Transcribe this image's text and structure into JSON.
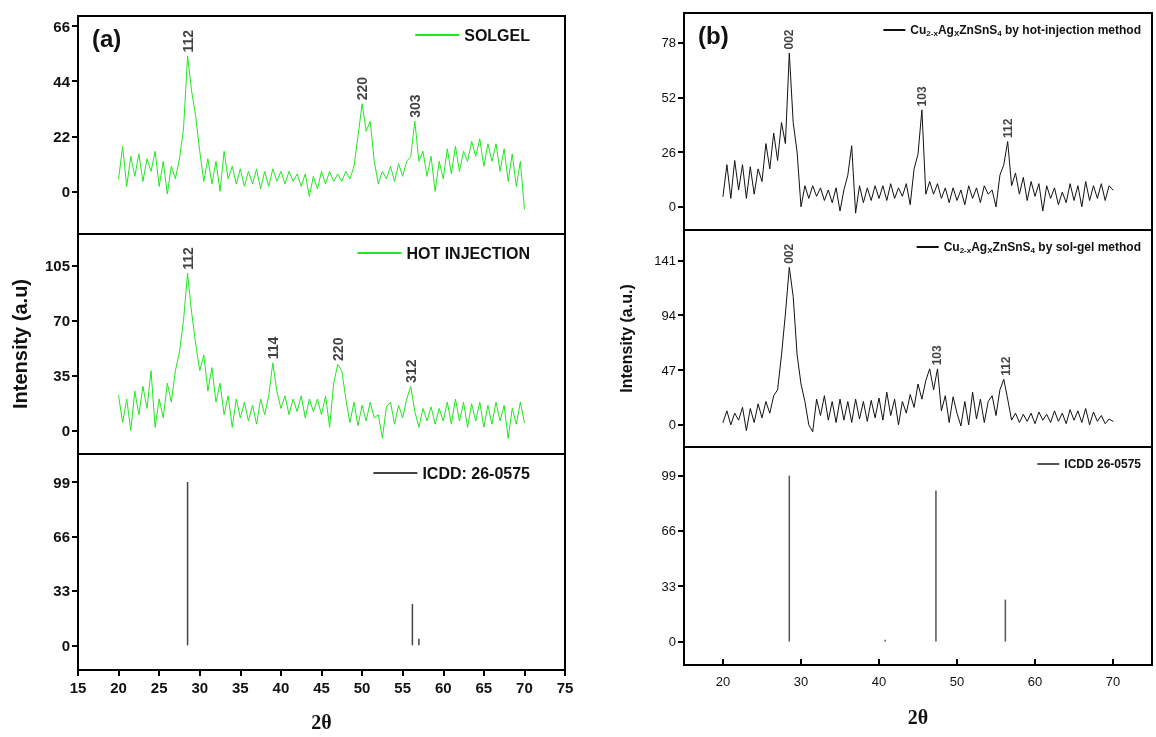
{
  "chart_data": [
    {
      "type": "line",
      "xlim": [
        15,
        75
      ],
      "ylim": [
        -17,
        70
      ],
      "yticks": [
        0,
        22,
        44,
        66
      ],
      "tick_labels": "y",
      "legend": "top right",
      "annotations": [
        "(a)",
        {
          "text": "112",
          "x": 28.5,
          "y": 54
        },
        {
          "text": "220",
          "x": 50,
          "y": 35
        },
        {
          "text": "303",
          "x": 56.5,
          "y": 28
        }
      ],
      "series": [
        {
          "name": "SOLGEL",
          "color": "#22e622",
          "x": [
            20,
            20.5,
            21,
            21.5,
            22,
            22.5,
            23,
            23.5,
            24,
            24.5,
            25,
            25.5,
            26,
            26.5,
            27,
            27.5,
            28,
            28.5,
            29,
            29.5,
            30,
            30.5,
            31,
            31.5,
            32,
            32.5,
            33,
            33.5,
            34,
            34.5,
            35,
            35.5,
            36,
            36.5,
            37,
            37.5,
            38,
            38.5,
            39,
            39.5,
            40,
            40.5,
            41,
            41.5,
            42,
            42.5,
            43,
            43.5,
            44,
            44.5,
            45,
            45.5,
            46,
            46.5,
            47,
            47.5,
            48,
            48.5,
            49,
            49.5,
            50,
            50.5,
            51,
            51.5,
            52,
            52.5,
            53,
            53.5,
            54,
            54.5,
            55,
            55.5,
            56,
            56.5,
            57,
            57.5,
            58,
            58.5,
            59,
            59.5,
            60,
            60.5,
            61,
            61.5,
            62,
            62.5,
            63,
            63.5,
            64,
            64.5,
            65,
            65.5,
            66,
            66.5,
            67,
            67.5,
            68,
            68.5,
            69,
            69.5,
            70
          ],
          "values": [
            5,
            18,
            2,
            14,
            6,
            15,
            4,
            13,
            8,
            16,
            2,
            12,
            -1,
            10,
            5,
            13,
            25,
            54,
            40,
            30,
            16,
            4,
            13,
            3,
            12,
            0,
            16,
            5,
            10,
            3,
            9,
            2,
            8,
            3,
            9,
            1,
            8,
            2,
            9,
            4,
            8,
            3,
            8,
            4,
            7,
            2,
            7,
            -2,
            6,
            1,
            8,
            3,
            8,
            4,
            7,
            4,
            8,
            5,
            10,
            22,
            35,
            24,
            28,
            12,
            3,
            8,
            5,
            10,
            4,
            11,
            6,
            12,
            14,
            28,
            12,
            16,
            6,
            14,
            0,
            12,
            5,
            17,
            7,
            18,
            8,
            16,
            12,
            20,
            14,
            21,
            10,
            19,
            12,
            19,
            8,
            17,
            4,
            15,
            2,
            12,
            -7
          ]
        }
      ]
    },
    {
      "type": "line",
      "xlim": [
        15,
        75
      ],
      "ylim": [
        -15,
        125
      ],
      "yticks": [
        0,
        35,
        70,
        105
      ],
      "tick_labels": "y",
      "legend": "top right",
      "ylabel": "Intensity (a.u)",
      "annotations": [
        {
          "text": "112",
          "x": 28.5,
          "y": 100
        },
        {
          "text": "114",
          "x": 39,
          "y": 43
        },
        {
          "text": "220",
          "x": 47,
          "y": 42
        },
        {
          "text": "312",
          "x": 56,
          "y": 28
        }
      ],
      "series": [
        {
          "name": "HOT INJECTION",
          "color": "#22e622",
          "x": [
            20,
            20.5,
            21,
            21.5,
            22,
            22.5,
            23,
            23.5,
            24,
            24.5,
            25,
            25.5,
            26,
            26.5,
            27,
            27.5,
            28,
            28.5,
            29,
            29.5,
            30,
            30.5,
            31,
            31.5,
            32,
            32.5,
            33,
            33.5,
            34,
            34.5,
            35,
            35.5,
            36,
            36.5,
            37,
            37.5,
            38,
            38.5,
            39,
            39.5,
            40,
            40.5,
            41,
            41.5,
            42,
            42.5,
            43,
            43.5,
            44,
            44.5,
            45,
            45.5,
            46,
            46.5,
            47,
            47.5,
            48,
            48.5,
            49,
            49.5,
            50,
            50.5,
            51,
            51.5,
            52,
            52.5,
            53,
            53.5,
            54,
            54.5,
            55,
            55.5,
            56,
            56.5,
            57,
            57.5,
            58,
            58.5,
            59,
            59.5,
            60,
            60.5,
            61,
            61.5,
            62,
            62.5,
            63,
            63.5,
            64,
            64.5,
            65,
            65.5,
            66,
            66.5,
            67,
            67.5,
            68,
            68.5,
            69,
            69.5,
            70
          ],
          "values": [
            22,
            5,
            20,
            0,
            25,
            10,
            28,
            14,
            38,
            2,
            20,
            8,
            30,
            18,
            38,
            50,
            70,
            100,
            75,
            55,
            38,
            48,
            25,
            40,
            18,
            30,
            10,
            22,
            2,
            20,
            8,
            18,
            6,
            16,
            4,
            20,
            10,
            22,
            43,
            25,
            14,
            22,
            10,
            20,
            12,
            22,
            8,
            20,
            12,
            20,
            10,
            22,
            2,
            30,
            42,
            38,
            20,
            5,
            18,
            3,
            16,
            6,
            18,
            8,
            10,
            -5,
            15,
            18,
            4,
            16,
            8,
            20,
            28,
            12,
            2,
            14,
            6,
            15,
            4,
            14,
            6,
            18,
            4,
            20,
            6,
            18,
            2,
            17,
            6,
            18,
            2,
            16,
            4,
            18,
            6,
            16,
            -5,
            14,
            4,
            18,
            5
          ]
        }
      ]
    },
    {
      "type": "bar",
      "xlim": [
        15,
        75
      ],
      "ylim": [
        -15,
        116
      ],
      "xticks": [
        15,
        20,
        25,
        30,
        35,
        40,
        45,
        50,
        55,
        60,
        65,
        70,
        75
      ],
      "yticks": [
        0,
        33,
        66,
        99
      ],
      "xlabel": "2θ",
      "legend": "top right",
      "series": [
        {
          "name": "ICDD: 26-0575",
          "color": "#444444",
          "x": [
            28.5,
            56.2,
            57
          ],
          "values": [
            99,
            25,
            4
          ]
        }
      ]
    },
    {
      "type": "line",
      "xlim": [
        15,
        75
      ],
      "ylim": [
        -11,
        92
      ],
      "yticks": [
        0,
        26,
        52,
        78
      ],
      "tick_labels": "y",
      "legend": "top right",
      "annotations": [
        "(b)",
        {
          "text": "002",
          "x": 28.5,
          "y": 73
        },
        {
          "text": "103",
          "x": 45.5,
          "y": 46
        },
        {
          "text": "112",
          "x": 56.6,
          "y": 31
        }
      ],
      "series": [
        {
          "name": "Cu$_{2-x}$Ag$_{X}$ZnSnS$_{4}$ by hot-injection method",
          "color": "#111111",
          "x": [
            20,
            20.5,
            21,
            21.5,
            22,
            22.5,
            23,
            23.5,
            24,
            24.5,
            25,
            25.5,
            26,
            26.5,
            27,
            27.5,
            28,
            28.5,
            29,
            29.5,
            30,
            30.5,
            31,
            31.5,
            32,
            32.5,
            33,
            33.5,
            34,
            34.5,
            35,
            35.5,
            36,
            36.5,
            37,
            37.5,
            38,
            38.5,
            39,
            39.5,
            40,
            40.5,
            41,
            41.5,
            42,
            42.5,
            43,
            43.5,
            44,
            44.5,
            45,
            45.5,
            46,
            46.5,
            47,
            47.5,
            48,
            48.5,
            49,
            49.5,
            50,
            50.5,
            51,
            51.5,
            52,
            52.5,
            53,
            53.5,
            54,
            54.5,
            55,
            55.5,
            56,
            56.5,
            57,
            57.5,
            58,
            58.5,
            59,
            59.5,
            60,
            60.5,
            61,
            61.5,
            62,
            62.5,
            63,
            63.5,
            64,
            64.5,
            65,
            65.5,
            66,
            66.5,
            67,
            67.5,
            68,
            68.5,
            69,
            69.5,
            70
          ],
          "values": [
            5,
            20,
            4,
            22,
            8,
            20,
            4,
            19,
            6,
            18,
            12,
            30,
            18,
            35,
            22,
            40,
            30,
            73,
            40,
            26,
            0,
            10,
            4,
            10,
            5,
            9,
            3,
            8,
            2,
            9,
            -2,
            8,
            15,
            29,
            -3,
            10,
            2,
            9,
            3,
            10,
            4,
            10,
            3,
            11,
            4,
            9,
            5,
            11,
            1,
            18,
            25,
            46,
            6,
            12,
            6,
            11,
            4,
            9,
            2,
            9,
            3,
            8,
            1,
            10,
            4,
            9,
            2,
            10,
            6,
            8,
            0,
            15,
            20,
            31,
            10,
            16,
            6,
            14,
            3,
            12,
            5,
            11,
            -2,
            10,
            4,
            9,
            1,
            7,
            2,
            11,
            3,
            10,
            0,
            12,
            3,
            10,
            4,
            11,
            3,
            10,
            8
          ]
        }
      ]
    },
    {
      "type": "line",
      "xlim": [
        15,
        75
      ],
      "ylim": [
        -19,
        167
      ],
      "yticks": [
        0,
        47,
        94,
        141
      ],
      "tick_labels": "y",
      "legend": "top right",
      "ylabel": "Intensity (a.u.)",
      "annotations": [
        {
          "text": "002",
          "x": 28.5,
          "y": 135
        },
        {
          "text": "103",
          "x": 47.4,
          "y": 48
        },
        {
          "text": "112",
          "x": 56.3,
          "y": 39
        }
      ],
      "series": [
        {
          "name": "Cu$_{2-x}$Ag$_{X}$ZnSnS$_{4}$ by sol-gel method",
          "color": "#111111",
          "x": [
            20,
            20.5,
            21,
            21.5,
            22,
            22.5,
            23,
            23.5,
            24,
            24.5,
            25,
            25.5,
            26,
            26.5,
            27,
            27.5,
            28,
            28.5,
            29,
            29.5,
            30,
            30.5,
            31,
            31.5,
            32,
            32.5,
            33,
            33.5,
            34,
            34.5,
            35,
            35.5,
            36,
            36.5,
            37,
            37.5,
            38,
            38.5,
            39,
            39.5,
            40,
            40.5,
            41,
            41.5,
            42,
            42.5,
            43,
            43.5,
            44,
            44.5,
            45,
            45.5,
            46,
            46.5,
            47,
            47.5,
            48,
            48.5,
            49,
            49.5,
            50,
            50.5,
            51,
            51.5,
            52,
            52.5,
            53,
            53.5,
            54,
            54.5,
            55,
            55.5,
            56,
            56.5,
            57,
            57.5,
            58,
            58.5,
            59,
            59.5,
            60,
            60.5,
            61,
            61.5,
            62,
            62.5,
            63,
            63.5,
            64,
            64.5,
            65,
            65.5,
            66,
            66.5,
            67,
            67.5,
            68,
            68.5,
            69,
            69.5,
            70
          ],
          "values": [
            2,
            12,
            0,
            10,
            4,
            15,
            -5,
            14,
            2,
            18,
            6,
            20,
            10,
            25,
            30,
            60,
            95,
            135,
            110,
            60,
            35,
            20,
            0,
            -6,
            22,
            8,
            25,
            4,
            20,
            2,
            22,
            4,
            20,
            2,
            22,
            5,
            20,
            3,
            21,
            6,
            23,
            4,
            28,
            8,
            22,
            0,
            20,
            10,
            26,
            15,
            35,
            22,
            38,
            48,
            30,
            48,
            12,
            25,
            2,
            24,
            10,
            -1,
            20,
            0,
            28,
            5,
            22,
            2,
            20,
            25,
            8,
            30,
            39,
            22,
            4,
            10,
            2,
            9,
            3,
            10,
            1,
            11,
            4,
            9,
            2,
            12,
            3,
            10,
            1,
            13,
            4,
            12,
            2,
            14,
            0,
            11,
            3,
            8,
            1,
            5,
            3
          ]
        }
      ]
    },
    {
      "type": "bar",
      "xlim": [
        15,
        75
      ],
      "ylim": [
        -14,
        116
      ],
      "xticks": [
        20,
        30,
        40,
        50,
        60,
        70
      ],
      "yticks": [
        0,
        33,
        66,
        99
      ],
      "xlabel": "2θ",
      "legend": "top right",
      "series": [
        {
          "name": "ICDD 26-0575",
          "color": "#555555",
          "x": [
            28.5,
            40.8,
            47.3,
            56.2
          ],
          "values": [
            99,
            1,
            90,
            25
          ]
        }
      ]
    }
  ]
}
